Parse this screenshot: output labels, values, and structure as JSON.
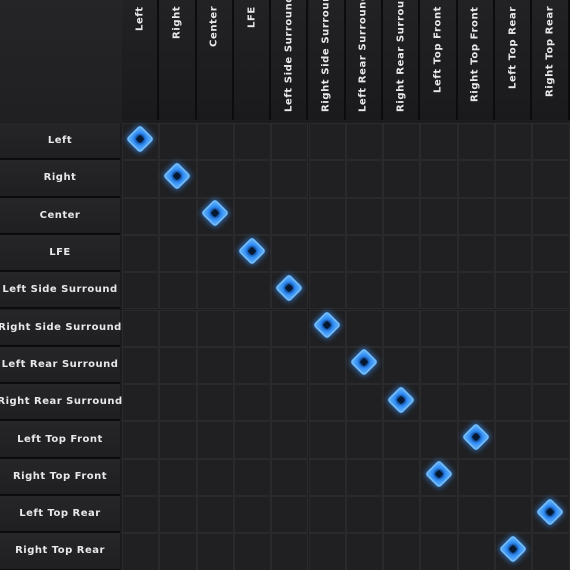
{
  "channels": [
    "Left",
    "Right",
    "Center",
    "LFE",
    "Left Side Surround",
    "Right Side Surround",
    "Left Rear Surround",
    "Right Rear Surround",
    "Left Top Front",
    "Right Top Front",
    "Left Top Rear",
    "Right Top Rear"
  ],
  "routing": [
    {
      "input": "Left",
      "output": "Left"
    },
    {
      "input": "Right",
      "output": "Right"
    },
    {
      "input": "Center",
      "output": "Center"
    },
    {
      "input": "LFE",
      "output": "LFE"
    },
    {
      "input": "Left Side Surround",
      "output": "Left Side Surround"
    },
    {
      "input": "Right Side Surround",
      "output": "Right Side Surround"
    },
    {
      "input": "Left Rear Surround",
      "output": "Left Rear Surround"
    },
    {
      "input": "Right Rear Surround",
      "output": "Right Rear Surround"
    },
    {
      "input": "Left Top Front",
      "output": "Right Top Front"
    },
    {
      "input": "Right Top Front",
      "output": "Left Top Front"
    },
    {
      "input": "Left Top Rear",
      "output": "Right Top Rear"
    },
    {
      "input": "Right Top Rear",
      "output": "Left Top Rear"
    }
  ],
  "colors": {
    "background": "#1c1c1e",
    "cell": "#202022",
    "node_accent": "#2f8cf5",
    "label": "#e8e8ea"
  }
}
